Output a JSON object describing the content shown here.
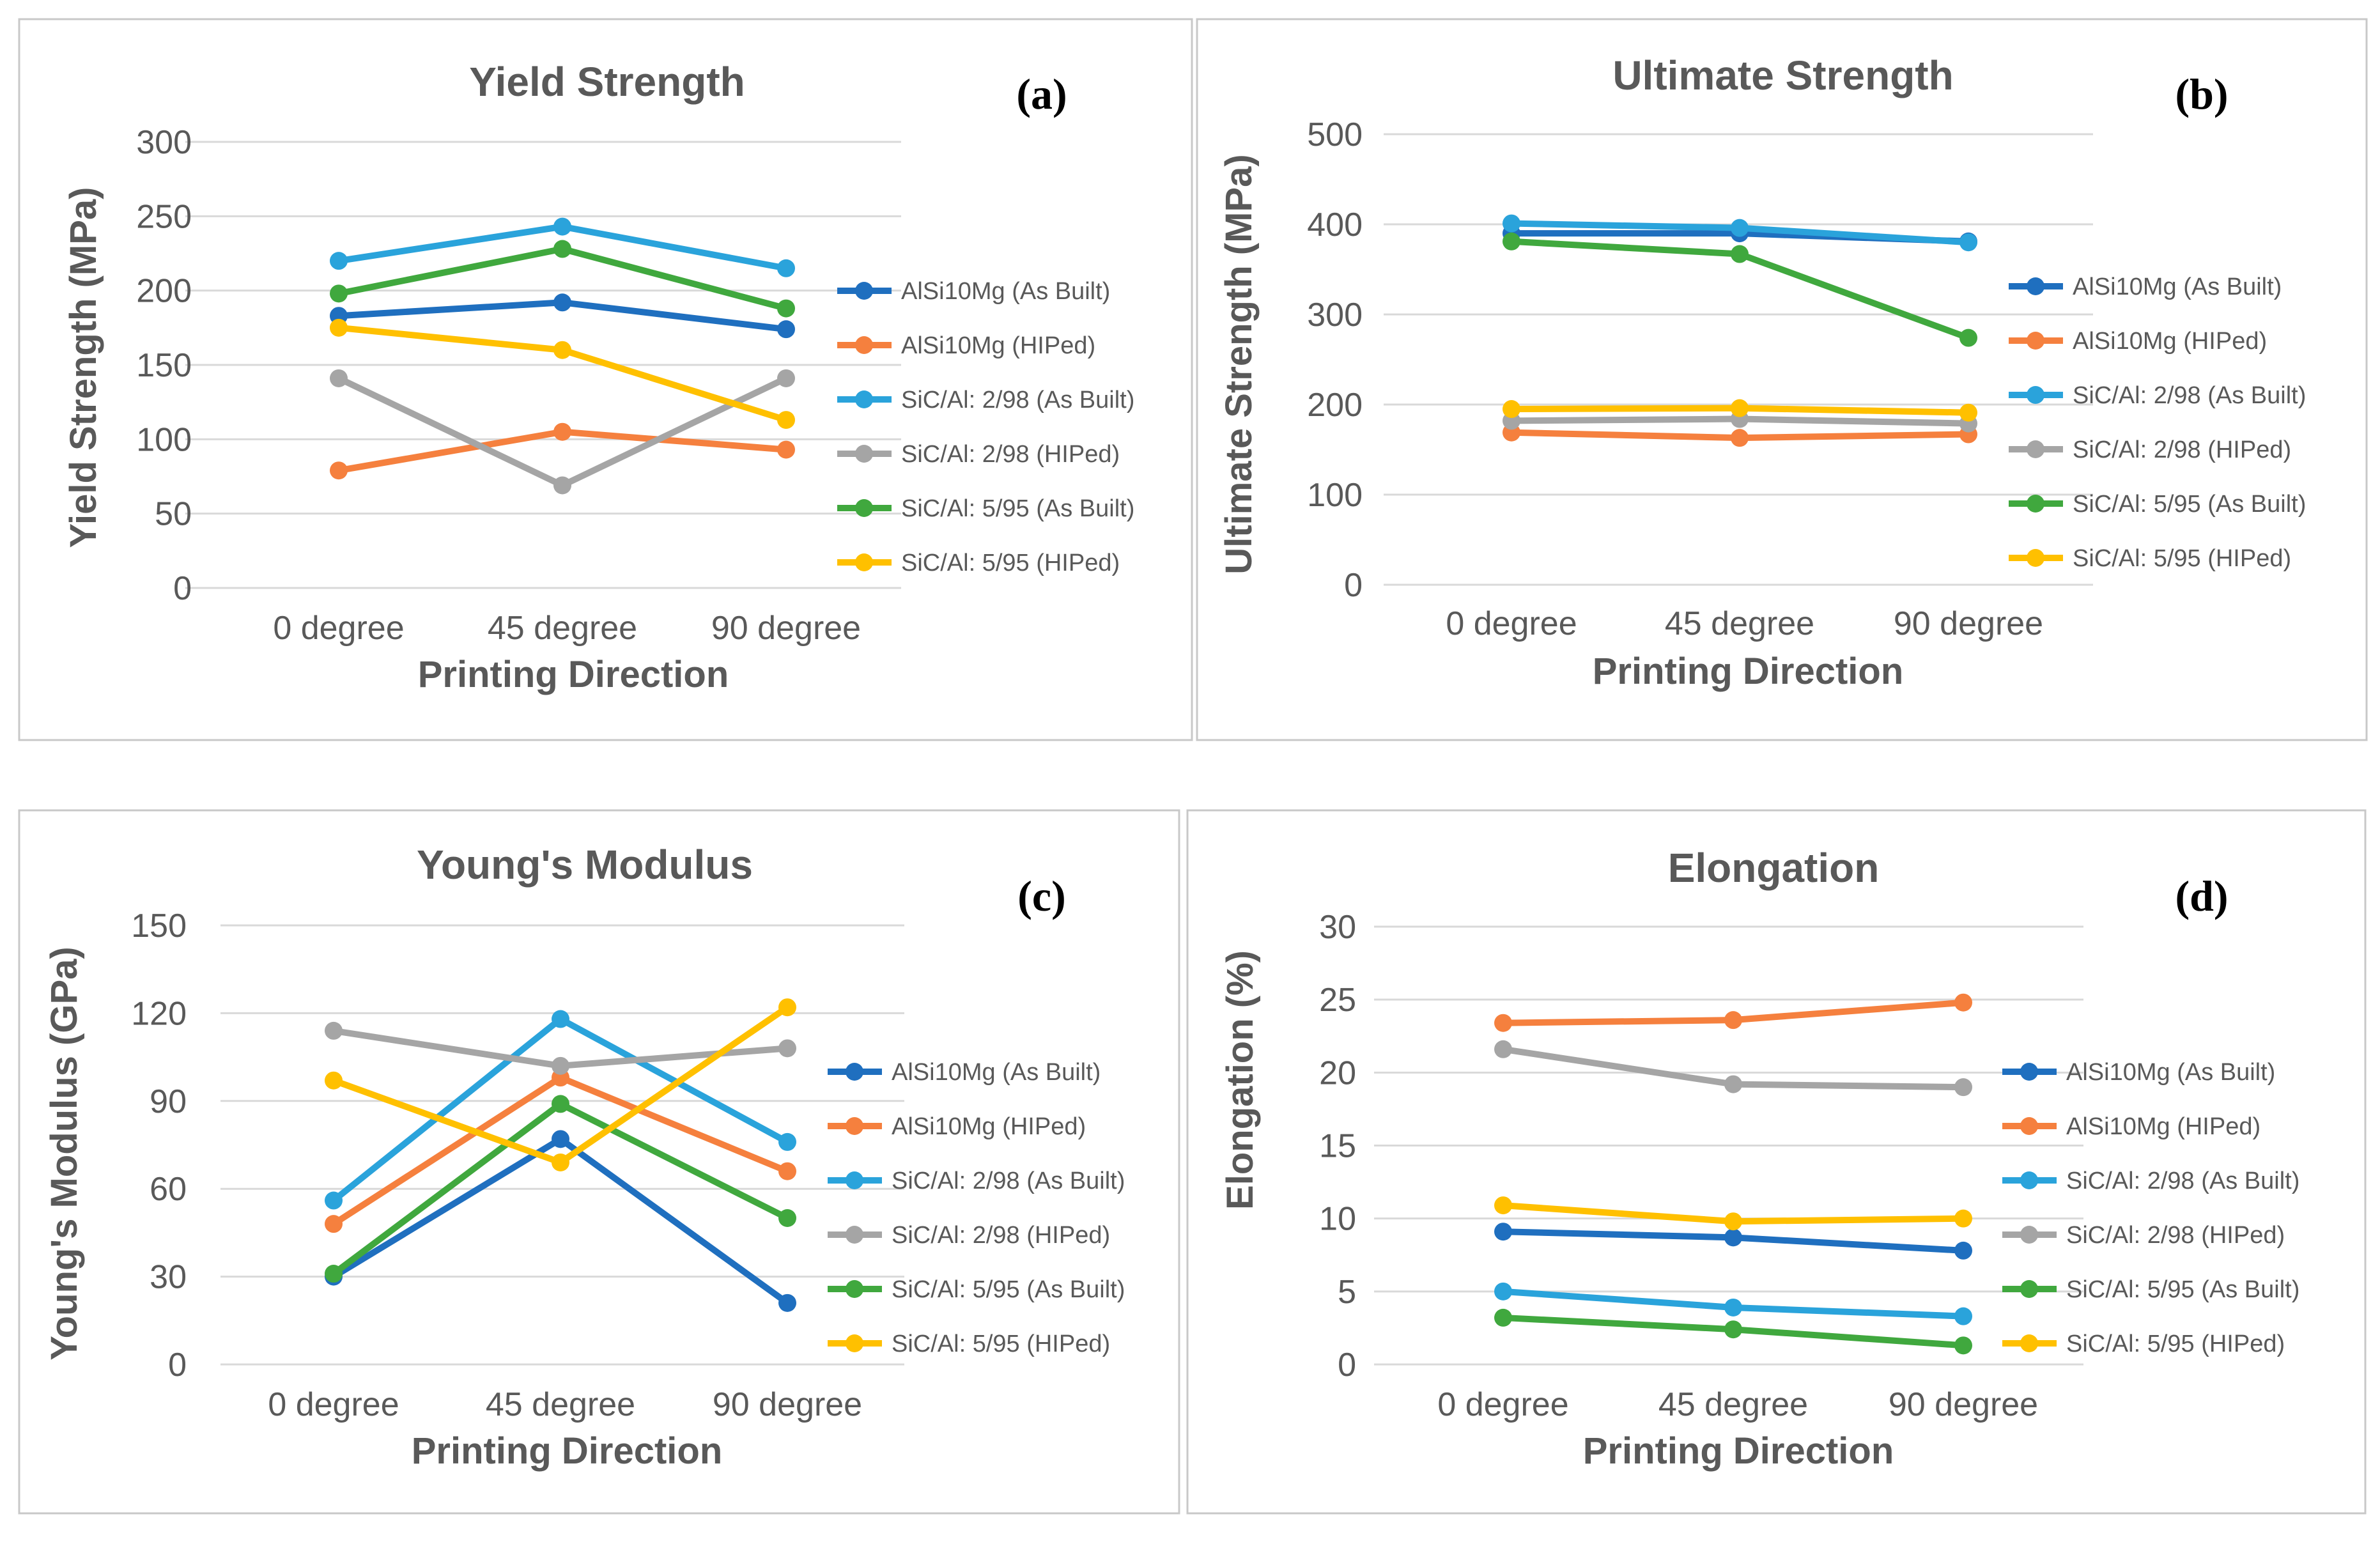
{
  "figure": {
    "printing_directions": [
      "0 degree",
      "45 degree",
      "90 degree"
    ],
    "series_names": [
      "AlSi10Mg (As Built)",
      "AlSi10Mg (HIPed)",
      "SiC/Al: 2/98 (As Built)",
      "SiC/Al: 2/98 (HIPed)",
      "SiC/Al: 5/95 (As Built)",
      "SiC/Al: 5/95 (HIPed)"
    ],
    "colors": [
      "#1f6fbf",
      "#f5803e",
      "#2aa3db",
      "#a5a5a5",
      "#40a83e",
      "#ffc000"
    ]
  },
  "chart_data": [
    {
      "type": "line",
      "panel_label": "(a)",
      "title": "Yield Strength",
      "xlabel": "Printing Direction",
      "ylabel": "Yield Strength (MPa)",
      "ylim": [
        0,
        300
      ],
      "yticks": [
        0,
        50,
        100,
        150,
        200,
        250,
        300
      ],
      "categories": [
        "0 degree",
        "45 degree",
        "90 degree"
      ],
      "series": [
        {
          "name": "AlSi10Mg (As Built)",
          "color": "#1f6fbf",
          "values": [
            183,
            192,
            174
          ]
        },
        {
          "name": "AlSi10Mg (HIPed)",
          "color": "#f5803e",
          "values": [
            79,
            105,
            93
          ]
        },
        {
          "name": "SiC/Al: 2/98 (As Built)",
          "color": "#2aa3db",
          "values": [
            220,
            243,
            215
          ]
        },
        {
          "name": "SiC/Al: 2/98 (HIPed)",
          "color": "#a5a5a5",
          "values": [
            141,
            69,
            141
          ]
        },
        {
          "name": "SiC/Al: 5/95 (As Built)",
          "color": "#40a83e",
          "values": [
            198,
            228,
            188
          ]
        },
        {
          "name": "SiC/Al: 5/95 (HIPed)",
          "color": "#ffc000",
          "values": [
            175,
            160,
            113
          ]
        }
      ]
    },
    {
      "type": "line",
      "panel_label": "(b)",
      "title": "Ultimate Strength",
      "xlabel": "Printing Direction",
      "ylabel": "Ultimate Strength (MPa)",
      "ylim": [
        0,
        500
      ],
      "yticks": [
        0,
        100,
        200,
        300,
        400,
        500
      ],
      "categories": [
        "0 degree",
        "45 degree",
        "90 degree"
      ],
      "series": [
        {
          "name": "AlSi10Mg (As Built)",
          "color": "#1f6fbf",
          "values": [
            390,
            390,
            381
          ]
        },
        {
          "name": "AlSi10Mg (HIPed)",
          "color": "#f5803e",
          "values": [
            169,
            163,
            167
          ]
        },
        {
          "name": "SiC/Al: 2/98 (As Built)",
          "color": "#2aa3db",
          "values": [
            401,
            396,
            380
          ]
        },
        {
          "name": "SiC/Al: 2/98 (HIPed)",
          "color": "#a5a5a5",
          "values": [
            182,
            184,
            179
          ]
        },
        {
          "name": "SiC/Al: 5/95 (As Built)",
          "color": "#40a83e",
          "values": [
            381,
            367,
            274
          ]
        },
        {
          "name": "SiC/Al: 5/95 (HIPed)",
          "color": "#ffc000",
          "values": [
            195,
            196,
            191
          ]
        }
      ]
    },
    {
      "type": "line",
      "panel_label": "(c)",
      "title": "Young's Modulus",
      "xlabel": "Printing Direction",
      "ylabel": "Young's Modulus (GPa)",
      "ylim": [
        0,
        150
      ],
      "yticks": [
        0,
        30,
        60,
        90,
        120,
        150
      ],
      "categories": [
        "0 degree",
        "45 degree",
        "90 degree"
      ],
      "series": [
        {
          "name": "AlSi10Mg (As Built)",
          "color": "#1f6fbf",
          "values": [
            30,
            77,
            21
          ]
        },
        {
          "name": "AlSi10Mg (HIPed)",
          "color": "#f5803e",
          "values": [
            48,
            98,
            66
          ]
        },
        {
          "name": "SiC/Al: 2/98 (As Built)",
          "color": "#2aa3db",
          "values": [
            56,
            118,
            76
          ]
        },
        {
          "name": "SiC/Al: 2/98 (HIPed)",
          "color": "#a5a5a5",
          "values": [
            114,
            102,
            108
          ]
        },
        {
          "name": "SiC/Al: 5/95 (As Built)",
          "color": "#40a83e",
          "values": [
            31,
            89,
            50
          ]
        },
        {
          "name": "SiC/Al: 5/95 (HIPed)",
          "color": "#ffc000",
          "values": [
            97,
            69,
            122
          ]
        }
      ]
    },
    {
      "type": "line",
      "panel_label": "(d)",
      "title": "Elongation",
      "xlabel": "Printing Direction",
      "ylabel": "Elongation (%)",
      "ylim": [
        0,
        30
      ],
      "yticks": [
        0,
        5,
        10,
        15,
        20,
        25,
        30
      ],
      "categories": [
        "0 degree",
        "45 degree",
        "90 degree"
      ],
      "series": [
        {
          "name": "AlSi10Mg (As Built)",
          "color": "#1f6fbf",
          "values": [
            9.1,
            8.7,
            7.8
          ]
        },
        {
          "name": "AlSi10Mg (HIPed)",
          "color": "#f5803e",
          "values": [
            23.4,
            23.6,
            24.8
          ]
        },
        {
          "name": "SiC/Al: 2/98 (As Built)",
          "color": "#2aa3db",
          "values": [
            5.0,
            3.9,
            3.3
          ]
        },
        {
          "name": "SiC/Al: 2/98 (HIPed)",
          "color": "#a5a5a5",
          "values": [
            21.6,
            19.2,
            19.0
          ]
        },
        {
          "name": "SiC/Al: 5/95 (As Built)",
          "color": "#40a83e",
          "values": [
            3.2,
            2.4,
            1.3
          ]
        },
        {
          "name": "SiC/Al: 5/95 (HIPed)",
          "color": "#ffc000",
          "values": [
            10.9,
            9.8,
            10.0
          ]
        }
      ]
    }
  ]
}
